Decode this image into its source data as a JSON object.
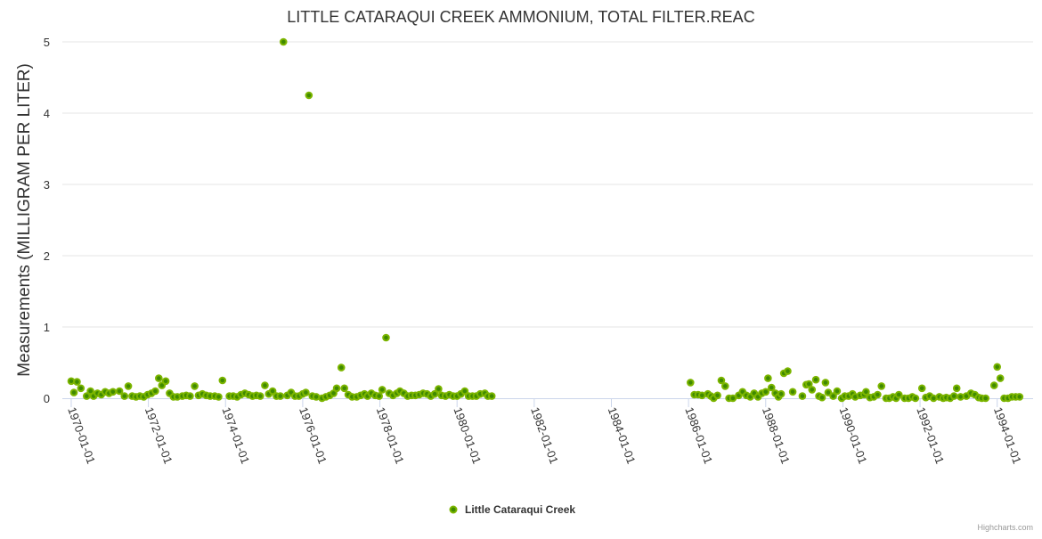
{
  "chart_data": {
    "type": "scatter",
    "title": "LITTLE CATARAQUI CREEK AMMONIUM, TOTAL FILTER.REAC",
    "xlabel": "",
    "ylabel": "Measurements (MILLIGRAM PER LITER)",
    "xlim": [
      1969.77,
      1994.93
    ],
    "ylim": [
      0,
      5
    ],
    "yticks": [
      "0",
      "1",
      "2",
      "3",
      "4",
      "5"
    ],
    "xticks": [
      {
        "year": 1970,
        "label": "1970-01-01"
      },
      {
        "year": 1972,
        "label": "1972-01-01"
      },
      {
        "year": 1974,
        "label": "1974-01-01"
      },
      {
        "year": 1976,
        "label": "1976-01-01"
      },
      {
        "year": 1978,
        "label": "1978-01-01"
      },
      {
        "year": 1980,
        "label": "1980-01-01"
      },
      {
        "year": 1982,
        "label": "1982-01-01"
      },
      {
        "year": 1984,
        "label": "1984-01-01"
      },
      {
        "year": 1986,
        "label": "1986-01-01"
      },
      {
        "year": 1988,
        "label": "1988-01-01"
      },
      {
        "year": 1990,
        "label": "1990-01-01"
      },
      {
        "year": 1992,
        "label": "1992-01-01"
      },
      {
        "year": 1994,
        "label": "1994-01-01"
      }
    ],
    "grid": true,
    "legend_position": "bottom-center",
    "series": [
      {
        "name": "Little Cataraqui Creek",
        "color": "#7cb500",
        "fill": "#3f8a00",
        "points": [
          [
            1970.0,
            0.24
          ],
          [
            1970.07,
            0.08
          ],
          [
            1970.15,
            0.23
          ],
          [
            1970.25,
            0.14
          ],
          [
            1970.4,
            0.03
          ],
          [
            1970.5,
            0.1
          ],
          [
            1970.58,
            0.03
          ],
          [
            1970.68,
            0.07
          ],
          [
            1970.78,
            0.05
          ],
          [
            1970.88,
            0.09
          ],
          [
            1970.98,
            0.07
          ],
          [
            1971.08,
            0.09
          ],
          [
            1971.25,
            0.1
          ],
          [
            1971.38,
            0.03
          ],
          [
            1971.48,
            0.17
          ],
          [
            1971.58,
            0.03
          ],
          [
            1971.68,
            0.02
          ],
          [
            1971.78,
            0.03
          ],
          [
            1971.88,
            0.02
          ],
          [
            1971.98,
            0.05
          ],
          [
            1972.08,
            0.07
          ],
          [
            1972.18,
            0.1
          ],
          [
            1972.27,
            0.28
          ],
          [
            1972.35,
            0.18
          ],
          [
            1972.45,
            0.24
          ],
          [
            1972.55,
            0.07
          ],
          [
            1972.65,
            0.02
          ],
          [
            1972.75,
            0.02
          ],
          [
            1972.88,
            0.03
          ],
          [
            1972.98,
            0.04
          ],
          [
            1973.08,
            0.03
          ],
          [
            1973.2,
            0.17
          ],
          [
            1973.3,
            0.04
          ],
          [
            1973.4,
            0.06
          ],
          [
            1973.5,
            0.04
          ],
          [
            1973.6,
            0.03
          ],
          [
            1973.72,
            0.03
          ],
          [
            1973.82,
            0.02
          ],
          [
            1973.92,
            0.25
          ],
          [
            1974.1,
            0.03
          ],
          [
            1974.2,
            0.03
          ],
          [
            1974.3,
            0.02
          ],
          [
            1974.4,
            0.05
          ],
          [
            1974.5,
            0.07
          ],
          [
            1974.6,
            0.05
          ],
          [
            1974.7,
            0.03
          ],
          [
            1974.8,
            0.04
          ],
          [
            1974.9,
            0.03
          ],
          [
            1975.02,
            0.18
          ],
          [
            1975.12,
            0.06
          ],
          [
            1975.22,
            0.1
          ],
          [
            1975.32,
            0.03
          ],
          [
            1975.42,
            0.03
          ],
          [
            1975.5,
            5.0
          ],
          [
            1975.6,
            0.04
          ],
          [
            1975.7,
            0.08
          ],
          [
            1975.8,
            0.03
          ],
          [
            1975.9,
            0.03
          ],
          [
            1976.0,
            0.06
          ],
          [
            1976.08,
            0.08
          ],
          [
            1976.16,
            4.25
          ],
          [
            1976.25,
            0.03
          ],
          [
            1976.35,
            0.02
          ],
          [
            1976.5,
            0.0
          ],
          [
            1976.6,
            0.02
          ],
          [
            1976.7,
            0.04
          ],
          [
            1976.8,
            0.07
          ],
          [
            1976.88,
            0.14
          ],
          [
            1977.0,
            0.43
          ],
          [
            1977.08,
            0.14
          ],
          [
            1977.18,
            0.05
          ],
          [
            1977.28,
            0.02
          ],
          [
            1977.4,
            0.02
          ],
          [
            1977.5,
            0.04
          ],
          [
            1977.6,
            0.06
          ],
          [
            1977.68,
            0.03
          ],
          [
            1977.78,
            0.07
          ],
          [
            1977.88,
            0.04
          ],
          [
            1977.98,
            0.03
          ],
          [
            1978.06,
            0.12
          ],
          [
            1978.16,
            0.85
          ],
          [
            1978.24,
            0.07
          ],
          [
            1978.34,
            0.04
          ],
          [
            1978.44,
            0.07
          ],
          [
            1978.52,
            0.1
          ],
          [
            1978.62,
            0.07
          ],
          [
            1978.72,
            0.03
          ],
          [
            1978.82,
            0.04
          ],
          [
            1978.92,
            0.04
          ],
          [
            1979.02,
            0.05
          ],
          [
            1979.12,
            0.07
          ],
          [
            1979.22,
            0.06
          ],
          [
            1979.32,
            0.03
          ],
          [
            1979.42,
            0.06
          ],
          [
            1979.52,
            0.13
          ],
          [
            1979.6,
            0.04
          ],
          [
            1979.7,
            0.03
          ],
          [
            1979.8,
            0.05
          ],
          [
            1979.9,
            0.03
          ],
          [
            1980.0,
            0.03
          ],
          [
            1980.1,
            0.06
          ],
          [
            1980.2,
            0.1
          ],
          [
            1980.3,
            0.03
          ],
          [
            1980.4,
            0.03
          ],
          [
            1980.5,
            0.03
          ],
          [
            1980.6,
            0.06
          ],
          [
            1980.72,
            0.07
          ],
          [
            1980.8,
            0.03
          ],
          [
            1980.9,
            0.03
          ],
          [
            1986.05,
            0.22
          ],
          [
            1986.15,
            0.05
          ],
          [
            1986.25,
            0.05
          ],
          [
            1986.35,
            0.04
          ],
          [
            1986.5,
            0.06
          ],
          [
            1986.58,
            0.03
          ],
          [
            1986.65,
            0.0
          ],
          [
            1986.75,
            0.04
          ],
          [
            1986.85,
            0.25
          ],
          [
            1986.95,
            0.17
          ],
          [
            1987.05,
            0.0
          ],
          [
            1987.15,
            0.0
          ],
          [
            1987.3,
            0.04
          ],
          [
            1987.4,
            0.09
          ],
          [
            1987.5,
            0.04
          ],
          [
            1987.6,
            0.02
          ],
          [
            1987.7,
            0.07
          ],
          [
            1987.8,
            0.02
          ],
          [
            1987.9,
            0.07
          ],
          [
            1988.0,
            0.09
          ],
          [
            1988.06,
            0.28
          ],
          [
            1988.15,
            0.15
          ],
          [
            1988.25,
            0.07
          ],
          [
            1988.33,
            0.02
          ],
          [
            1988.4,
            0.06
          ],
          [
            1988.47,
            0.35
          ],
          [
            1988.57,
            0.38
          ],
          [
            1988.7,
            0.09
          ],
          [
            1988.95,
            0.03
          ],
          [
            1989.05,
            0.19
          ],
          [
            1989.12,
            0.2
          ],
          [
            1989.2,
            0.12
          ],
          [
            1989.3,
            0.26
          ],
          [
            1989.38,
            0.03
          ],
          [
            1989.46,
            0.01
          ],
          [
            1989.55,
            0.22
          ],
          [
            1989.62,
            0.08
          ],
          [
            1989.75,
            0.03
          ],
          [
            1989.85,
            0.1
          ],
          [
            1989.97,
            0.0
          ],
          [
            1990.05,
            0.03
          ],
          [
            1990.15,
            0.03
          ],
          [
            1990.25,
            0.06
          ],
          [
            1990.32,
            0.02
          ],
          [
            1990.45,
            0.04
          ],
          [
            1990.55,
            0.05
          ],
          [
            1990.6,
            0.09
          ],
          [
            1990.7,
            0.01
          ],
          [
            1990.8,
            0.02
          ],
          [
            1990.9,
            0.05
          ],
          [
            1991.0,
            0.17
          ],
          [
            1991.12,
            0.0
          ],
          [
            1991.2,
            0.0
          ],
          [
            1991.3,
            0.02
          ],
          [
            1991.38,
            0.0
          ],
          [
            1991.45,
            0.05
          ],
          [
            1991.6,
            0.0
          ],
          [
            1991.7,
            0.0
          ],
          [
            1991.8,
            0.02
          ],
          [
            1991.88,
            0.0
          ],
          [
            1992.05,
            0.14
          ],
          [
            1992.15,
            0.01
          ],
          [
            1992.25,
            0.03
          ],
          [
            1992.35,
            0.0
          ],
          [
            1992.5,
            0.02
          ],
          [
            1992.6,
            0.0
          ],
          [
            1992.68,
            0.01
          ],
          [
            1992.78,
            0.0
          ],
          [
            1992.88,
            0.03
          ],
          [
            1992.95,
            0.14
          ],
          [
            1993.05,
            0.02
          ],
          [
            1993.2,
            0.03
          ],
          [
            1993.32,
            0.07
          ],
          [
            1993.42,
            0.05
          ],
          [
            1993.52,
            0.01
          ],
          [
            1993.6,
            0.0
          ],
          [
            1993.7,
            0.0
          ],
          [
            1993.92,
            0.18
          ],
          [
            1994.0,
            0.44
          ],
          [
            1994.08,
            0.28
          ],
          [
            1994.18,
            0.0
          ],
          [
            1994.28,
            0.0
          ],
          [
            1994.38,
            0.02
          ],
          [
            1994.48,
            0.02
          ],
          [
            1994.58,
            0.02
          ]
        ]
      }
    ],
    "legend": {
      "label": "Little Cataraqui Creek"
    }
  },
  "credits": "Highcharts.com"
}
